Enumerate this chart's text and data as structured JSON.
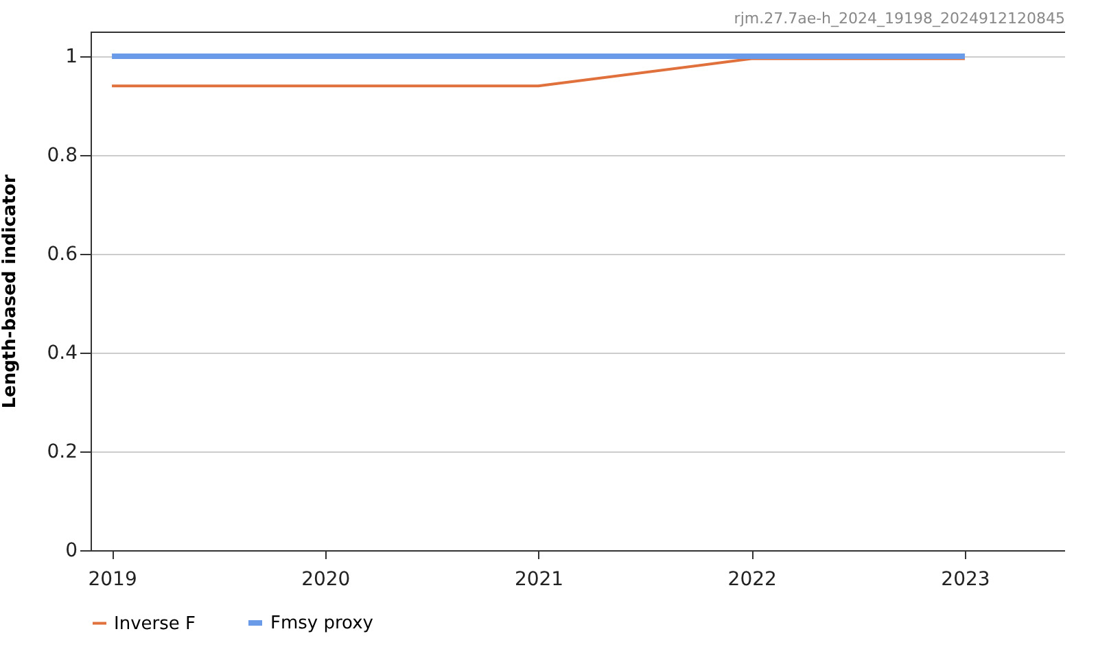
{
  "chart_data": {
    "type": "line",
    "annotations": [
      "rjm.27.7ae-h_2024_19198_2024912120845"
    ],
    "ylabel": "Length-based indicator",
    "x": [
      2019,
      2020,
      2021,
      2022,
      2023
    ],
    "series": [
      {
        "name": "Inverse F",
        "color": "#e0703c",
        "values": [
          0.94,
          0.94,
          0.94,
          0.995,
          0.995
        ]
      },
      {
        "name": "Fmsy proxy",
        "color": "#6a9be8",
        "values": [
          1,
          1,
          1,
          1,
          1
        ]
      }
    ],
    "xlim": [
      2018.9,
      2023.47
    ],
    "xticks": [
      2019,
      2020,
      2021,
      2022,
      2023
    ],
    "ylim": [
      0,
      1.05
    ],
    "yticks": [
      0,
      0.2,
      0.4,
      0.6,
      0.8,
      1
    ],
    "grid": "y",
    "legend": "bottom",
    "marker": "none",
    "line_style": "solid"
  }
}
